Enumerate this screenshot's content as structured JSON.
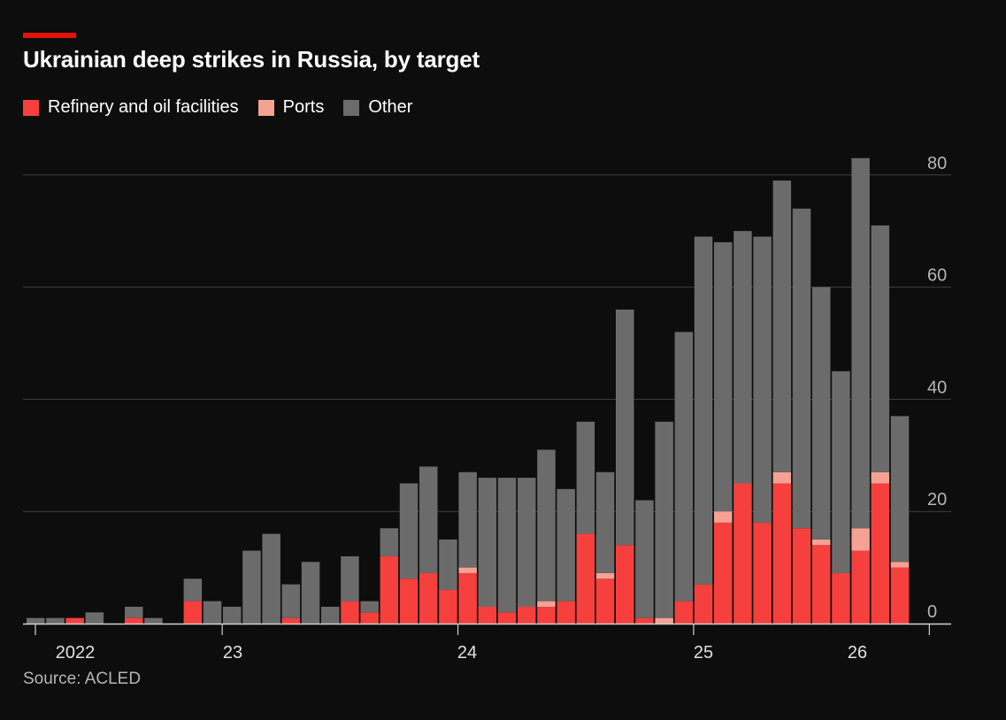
{
  "title": "Ukrainian deep strikes in Russia, by target",
  "source": "Source: ACLED",
  "legend": [
    {
      "label": "Refinery and oil facilities",
      "color": "#f5403d"
    },
    {
      "label": "Ports",
      "color": "#f5a294"
    },
    {
      "label": "Other",
      "color": "#6b6b6b"
    }
  ],
  "chart_data": {
    "type": "bar",
    "stacked": true,
    "frequency": "monthly",
    "start": "2022-03",
    "end": "2026-03",
    "x_tick_labels": [
      "2022",
      "23",
      "24",
      "25",
      "26"
    ],
    "y_ticks": [
      0,
      20,
      40,
      60,
      80
    ],
    "ylim": [
      0,
      84
    ],
    "y_axis_position": "right",
    "grid": true,
    "legend_position": "top-left",
    "series": [
      {
        "name": "Refinery and oil facilities",
        "color": "#f5403d",
        "values": [
          0,
          0,
          1,
          0,
          0,
          1,
          0,
          0,
          4,
          0,
          0,
          0,
          0,
          1,
          0,
          0,
          4,
          2,
          12,
          8,
          9,
          6,
          9,
          3,
          2,
          3,
          3,
          4,
          16,
          8,
          14,
          1,
          0,
          4,
          7,
          18,
          25,
          18,
          25,
          17,
          14,
          9,
          13,
          25,
          10
        ]
      },
      {
        "name": "Ports",
        "color": "#f5a294",
        "values": [
          0,
          0,
          0,
          0,
          0,
          0,
          0,
          0,
          0,
          0,
          0,
          0,
          0,
          0,
          0,
          0,
          0,
          0,
          0,
          0,
          0,
          0,
          1,
          0,
          0,
          0,
          1,
          0,
          0,
          1,
          0,
          0,
          1,
          0,
          0,
          2,
          0,
          0,
          2,
          0,
          1,
          0,
          4,
          2,
          1
        ]
      },
      {
        "name": "Other",
        "color": "#6b6b6b",
        "values": [
          1,
          1,
          0,
          2,
          0,
          2,
          1,
          0,
          4,
          4,
          3,
          13,
          16,
          6,
          11,
          3,
          8,
          2,
          5,
          17,
          19,
          9,
          17,
          23,
          24,
          23,
          27,
          20,
          20,
          18,
          42,
          21,
          35,
          48,
          62,
          48,
          45,
          51,
          52,
          57,
          45,
          36,
          66,
          44,
          26
        ]
      }
    ]
  }
}
